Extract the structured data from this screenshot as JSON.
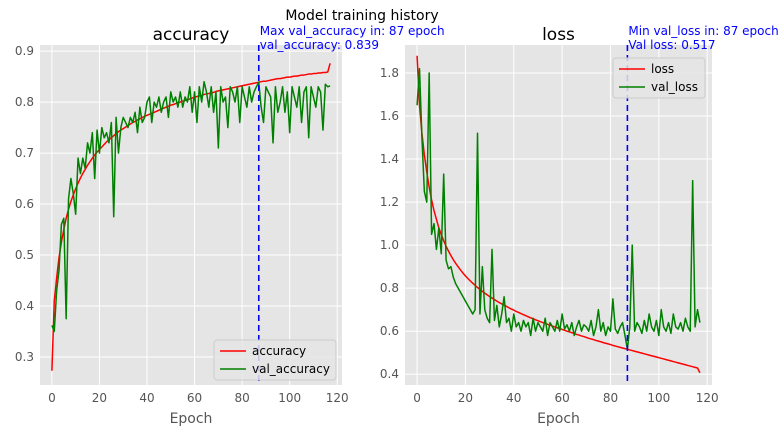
{
  "chart_data": {
    "suptitle": "Model training history",
    "plots": [
      {
        "type": "line",
        "title": "accuracy",
        "xlabel": "Epoch",
        "ylabel": "",
        "xlim": [
          -5,
          122
        ],
        "ylim": [
          0.245,
          0.912
        ],
        "xticks": [
          0,
          20,
          40,
          60,
          80,
          100,
          120
        ],
        "yticks": [
          0.3,
          0.4,
          0.5,
          0.6,
          0.7,
          0.8,
          0.9
        ],
        "ytick_labels": [
          "0.3",
          "0.4",
          "0.5",
          "0.6",
          "0.7",
          "0.8",
          "0.9"
        ],
        "legend_position": "lower-right",
        "vline": {
          "x": 87,
          "color": "#0000ff"
        },
        "annotation": [
          "Max val_accuracy in: 87 epoch",
          "val_accuracy: 0.839"
        ],
        "series": [
          {
            "name": "accuracy",
            "color": "#ff0000",
            "values": [
              0.273,
              0.41,
              0.455,
              0.495,
              0.525,
              0.55,
              0.572,
              0.59,
              0.605,
              0.618,
              0.63,
              0.641,
              0.651,
              0.66,
              0.668,
              0.676,
              0.683,
              0.69,
              0.696,
              0.702,
              0.707,
              0.712,
              0.717,
              0.722,
              0.726,
              0.73,
              0.734,
              0.738,
              0.742,
              0.745,
              0.748,
              0.751,
              0.754,
              0.757,
              0.76,
              0.762,
              0.765,
              0.767,
              0.77,
              0.772,
              0.774,
              0.776,
              0.778,
              0.78,
              0.782,
              0.784,
              0.786,
              0.788,
              0.79,
              0.792,
              0.794,
              0.795,
              0.797,
              0.799,
              0.8,
              0.802,
              0.803,
              0.805,
              0.806,
              0.808,
              0.809,
              0.811,
              0.812,
              0.813,
              0.815,
              0.816,
              0.817,
              0.818,
              0.819,
              0.821,
              0.822,
              0.823,
              0.824,
              0.825,
              0.826,
              0.827,
              0.828,
              0.829,
              0.83,
              0.831,
              0.832,
              0.833,
              0.834,
              0.835,
              0.836,
              0.837,
              0.838,
              0.839,
              0.84,
              0.841,
              0.841,
              0.842,
              0.843,
              0.844,
              0.845,
              0.846,
              0.846,
              0.847,
              0.848,
              0.849,
              0.849,
              0.85,
              0.851,
              0.851,
              0.852,
              0.853,
              0.853,
              0.854,
              0.855,
              0.855,
              0.856,
              0.856,
              0.857,
              0.857,
              0.858,
              0.858,
              0.859,
              0.876
            ]
          },
          {
            "name": "val_accuracy",
            "color": "#008000",
            "values": [
              0.362,
              0.35,
              0.43,
              0.47,
              0.56,
              0.572,
              0.375,
              0.61,
              0.65,
              0.62,
              0.58,
              0.69,
              0.66,
              0.69,
              0.67,
              0.72,
              0.7,
              0.74,
              0.65,
              0.745,
              0.7,
              0.75,
              0.73,
              0.74,
              0.72,
              0.76,
              0.575,
              0.77,
              0.7,
              0.75,
              0.77,
              0.76,
              0.75,
              0.77,
              0.76,
              0.78,
              0.74,
              0.79,
              0.76,
              0.77,
              0.8,
              0.81,
              0.76,
              0.8,
              0.79,
              0.81,
              0.78,
              0.8,
              0.81,
              0.77,
              0.82,
              0.8,
              0.81,
              0.79,
              0.82,
              0.79,
              0.81,
              0.8,
              0.83,
              0.78,
              0.82,
              0.76,
              0.83,
              0.8,
              0.84,
              0.82,
              0.79,
              0.83,
              0.78,
              0.82,
              0.71,
              0.83,
              0.8,
              0.81,
              0.75,
              0.83,
              0.82,
              0.8,
              0.83,
              0.76,
              0.83,
              0.81,
              0.79,
              0.83,
              0.8,
              0.82,
              0.83,
              0.839,
              0.79,
              0.76,
              0.83,
              0.82,
              0.81,
              0.72,
              0.83,
              0.78,
              0.8,
              0.83,
              0.78,
              0.82,
              0.74,
              0.83,
              0.81,
              0.79,
              0.83,
              0.76,
              0.82,
              0.83,
              0.73,
              0.83,
              0.81,
              0.79,
              0.83,
              0.82,
              0.745,
              0.835,
              0.83,
              0.832
            ]
          }
        ]
      },
      {
        "type": "line",
        "title": "loss",
        "xlabel": "Epoch",
        "ylabel": "",
        "xlim": [
          -5,
          122
        ],
        "ylim": [
          0.35,
          1.93
        ],
        "xticks": [
          0,
          20,
          40,
          60,
          80,
          100,
          120
        ],
        "yticks": [
          0.4,
          0.6,
          0.8,
          1.0,
          1.2,
          1.4,
          1.6,
          1.8
        ],
        "ytick_labels": [
          "0.4",
          "0.6",
          "0.8",
          "1.0",
          "1.2",
          "1.4",
          "1.6",
          "1.8"
        ],
        "legend_position": "upper-right",
        "vline": {
          "x": 87,
          "color": "#0000ff"
        },
        "annotation": [
          "Min val_loss in: 87 epoch",
          "Val loss: 0.517"
        ],
        "series": [
          {
            "name": "loss",
            "color": "#ff0000",
            "values": [
              1.88,
              1.65,
              1.52,
              1.42,
              1.34,
              1.27,
              1.21,
              1.16,
              1.12,
              1.08,
              1.05,
              1.02,
              0.995,
              0.972,
              0.951,
              0.932,
              0.915,
              0.899,
              0.884,
              0.87,
              0.857,
              0.845,
              0.834,
              0.823,
              0.813,
              0.803,
              0.794,
              0.785,
              0.777,
              0.769,
              0.761,
              0.754,
              0.747,
              0.74,
              0.733,
              0.727,
              0.721,
              0.715,
              0.709,
              0.703,
              0.698,
              0.692,
              0.687,
              0.682,
              0.677,
              0.672,
              0.667,
              0.662,
              0.658,
              0.653,
              0.649,
              0.644,
              0.64,
              0.636,
              0.632,
              0.628,
              0.624,
              0.62,
              0.616,
              0.612,
              0.608,
              0.604,
              0.6,
              0.597,
              0.593,
              0.589,
              0.585,
              0.582,
              0.578,
              0.575,
              0.571,
              0.567,
              0.564,
              0.561,
              0.557,
              0.554,
              0.551,
              0.547,
              0.544,
              0.541,
              0.538,
              0.534,
              0.531,
              0.528,
              0.525,
              0.522,
              0.519,
              0.516,
              0.513,
              0.51,
              0.507,
              0.504,
              0.501,
              0.498,
              0.495,
              0.492,
              0.489,
              0.486,
              0.483,
              0.48,
              0.477,
              0.474,
              0.471,
              0.468,
              0.465,
              0.462,
              0.459,
              0.456,
              0.453,
              0.45,
              0.447,
              0.444,
              0.441,
              0.438,
              0.435,
              0.432,
              0.429,
              0.407
            ]
          },
          {
            "name": "val_loss",
            "color": "#008000",
            "values": [
              1.65,
              1.82,
              1.5,
              1.25,
              1.2,
              1.8,
              1.05,
              1.1,
              0.98,
              1.08,
              0.96,
              1.33,
              0.93,
              0.89,
              0.9,
              0.85,
              0.82,
              0.8,
              0.78,
              0.76,
              0.74,
              0.72,
              0.7,
              0.68,
              0.7,
              1.52,
              0.68,
              0.9,
              0.7,
              0.66,
              0.64,
              0.98,
              0.65,
              0.72,
              0.62,
              0.68,
              0.76,
              0.64,
              0.66,
              0.6,
              0.68,
              0.62,
              0.64,
              0.6,
              0.65,
              0.62,
              0.64,
              0.58,
              0.66,
              0.6,
              0.64,
              0.62,
              0.6,
              0.66,
              0.58,
              0.64,
              0.62,
              0.6,
              0.65,
              0.6,
              0.68,
              0.61,
              0.63,
              0.6,
              0.64,
              0.58,
              0.62,
              0.65,
              0.6,
              0.63,
              0.62,
              0.6,
              0.65,
              0.58,
              0.62,
              0.7,
              0.6,
              0.64,
              0.58,
              0.62,
              0.6,
              0.75,
              0.61,
              0.59,
              0.62,
              0.64,
              0.58,
              0.517,
              0.62,
              1.0,
              0.6,
              0.64,
              0.62,
              0.59,
              0.65,
              0.6,
              0.68,
              0.62,
              0.6,
              0.65,
              0.58,
              0.7,
              0.62,
              0.6,
              0.64,
              0.59,
              0.68,
              0.62,
              0.61,
              0.64,
              0.6,
              0.66,
              0.62,
              0.6,
              1.3,
              0.62,
              0.7,
              0.64
            ]
          }
        ]
      }
    ]
  }
}
